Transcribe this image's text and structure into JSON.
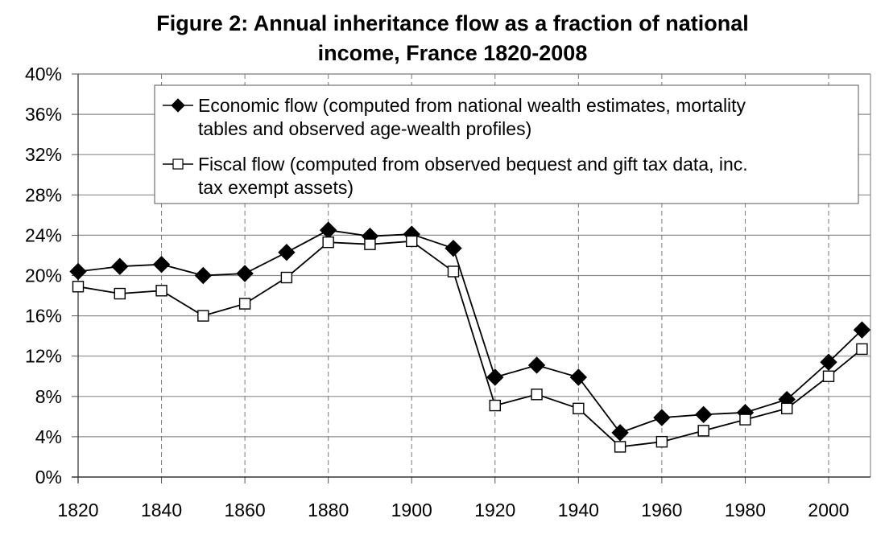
{
  "chart_data": {
    "type": "line",
    "title_lines": [
      "Figure 2: Annual inheritance flow as a fraction of national",
      "income, France 1820-2008"
    ],
    "xlabel": "",
    "ylabel": "",
    "xlim": [
      1820,
      2010
    ],
    "ylim": [
      0,
      40
    ],
    "x_ticks": [
      1820,
      1840,
      1860,
      1880,
      1900,
      1920,
      1940,
      1960,
      1980,
      2000
    ],
    "x_tick_labels": [
      "1820",
      "1840",
      "1860",
      "1880",
      "1900",
      "1920",
      "1940",
      "1960",
      "1980",
      "2000"
    ],
    "y_ticks": [
      0,
      4,
      8,
      12,
      16,
      20,
      24,
      28,
      32,
      36,
      40
    ],
    "y_tick_labels": [
      "0%",
      "4%",
      "8%",
      "12%",
      "16%",
      "20%",
      "24%",
      "28%",
      "32%",
      "36%",
      "40%"
    ],
    "grid": {
      "horizontal": "solid",
      "vertical": "dashed"
    },
    "legend_position": "top-right",
    "x": [
      1820,
      1830,
      1840,
      1850,
      1860,
      1870,
      1880,
      1890,
      1900,
      1910,
      1920,
      1930,
      1940,
      1950,
      1960,
      1970,
      1980,
      1990,
      2000,
      2008
    ],
    "series": [
      {
        "name": "Economic flow",
        "legend_lines": [
          "Economic flow (computed from national wealth estimates, mortality",
          "tables and observed age-wealth profiles)"
        ],
        "marker": "filled-diamond",
        "color": "#000000",
        "values": [
          20.4,
          20.9,
          21.1,
          20.0,
          20.2,
          22.3,
          24.5,
          23.9,
          24.1,
          22.7,
          9.9,
          11.1,
          9.9,
          4.4,
          5.9,
          6.2,
          6.4,
          7.7,
          11.4,
          14.6
        ]
      },
      {
        "name": "Fiscal flow",
        "legend_lines": [
          "Fiscal flow (computed from observed bequest and gift tax data, inc.",
          "tax exempt assets)"
        ],
        "marker": "open-square",
        "color": "#000000",
        "values": [
          18.9,
          18.2,
          18.5,
          16.0,
          17.2,
          19.8,
          23.3,
          23.1,
          23.4,
          20.4,
          7.1,
          8.2,
          6.8,
          3.0,
          3.5,
          4.6,
          5.7,
          6.8,
          10.0,
          12.7
        ]
      }
    ],
    "colors": {
      "axis": "#555555",
      "gridline": "#8c8c8c",
      "series_line": "#000000"
    }
  }
}
